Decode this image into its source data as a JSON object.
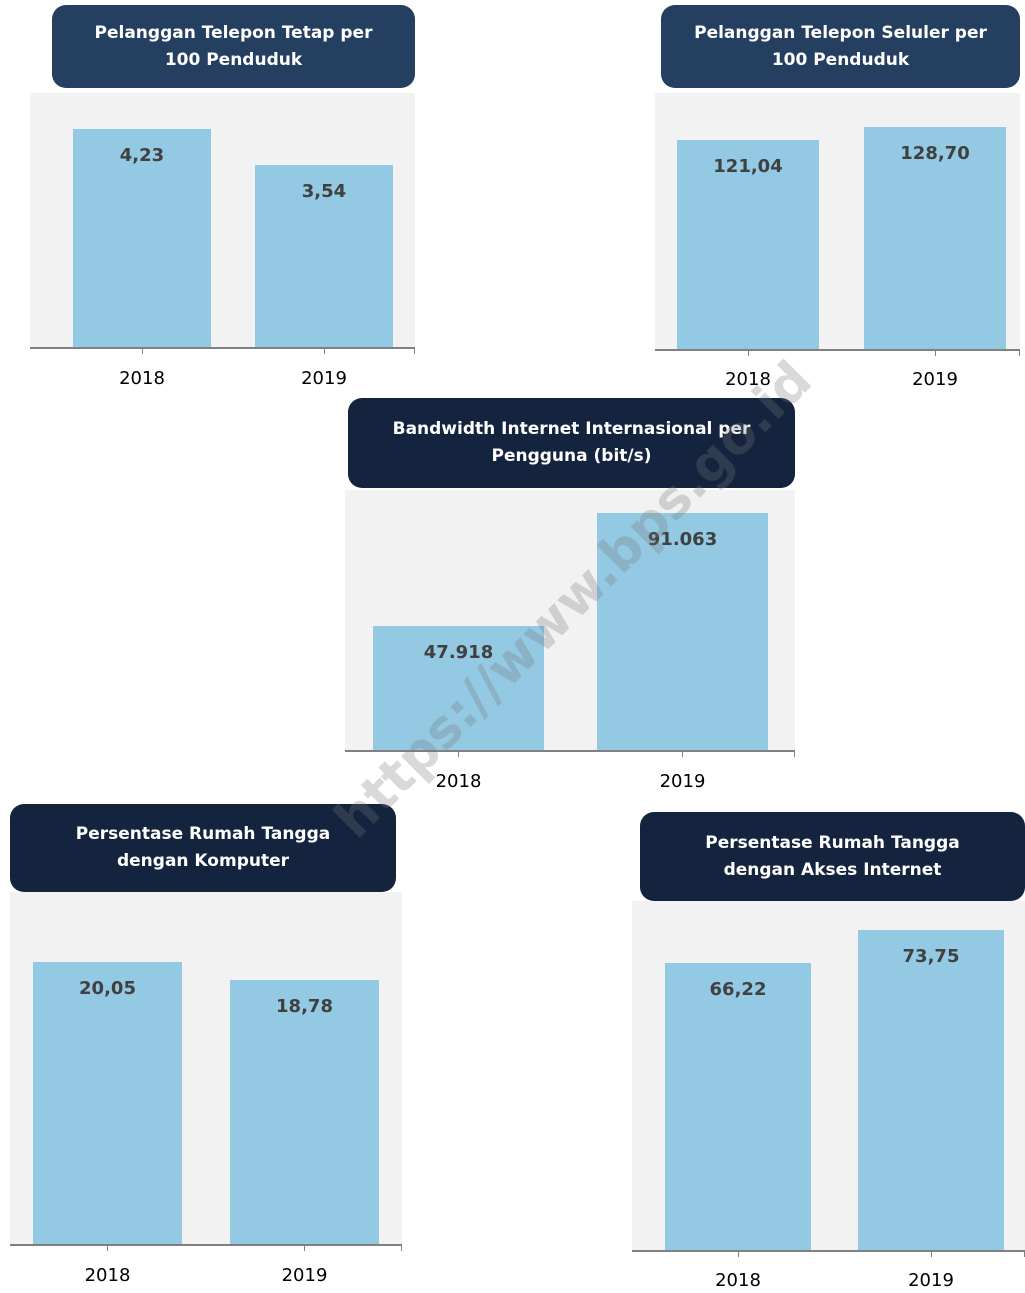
{
  "chart_data": [
    {
      "type": "bar",
      "title": "Pelanggan Telepon Tetap per 100 Penduduk",
      "categories": [
        "2018",
        "2019"
      ],
      "values": [
        4.23,
        3.54
      ],
      "value_labels": [
        "4,23",
        "3,54"
      ],
      "color": "#93c9e2",
      "header_color": "#243f60"
    },
    {
      "type": "bar",
      "title": "Pelanggan  Telepon  Seluler per 100 Penduduk",
      "categories": [
        "2018",
        "2019"
      ],
      "values": [
        121.04,
        128.7
      ],
      "value_labels": [
        "121,04",
        "128,70"
      ],
      "color": "#93c9e2",
      "header_color": "#243f60"
    },
    {
      "type": "bar",
      "title": "Bandwidth Internet Internasional per Pengguna (bit/s)",
      "categories": [
        "2018",
        "2019"
      ],
      "values": [
        47918,
        91063
      ],
      "value_labels": [
        "47.918",
        "91.063"
      ],
      "color": "#93c9e2",
      "header_color": "#14243f"
    },
    {
      "type": "bar",
      "title": "Persentase Rumah Tangga dengan Komputer",
      "categories": [
        "2018",
        "2019"
      ],
      "values": [
        20.05,
        18.78
      ],
      "value_labels": [
        "20,05",
        "18,78"
      ],
      "color": "#93c9e2",
      "header_color": "#14243f"
    },
    {
      "type": "bar",
      "title": "Persentase Rumah Tangga dengan Akses Internet",
      "categories": [
        "2018",
        "2019"
      ],
      "values": [
        66.22,
        73.75
      ],
      "value_labels": [
        "66,22",
        "73,75"
      ],
      "color": "#93c9e2",
      "header_color": "#14243f"
    }
  ],
  "watermark": "https://www.bps.go.id"
}
